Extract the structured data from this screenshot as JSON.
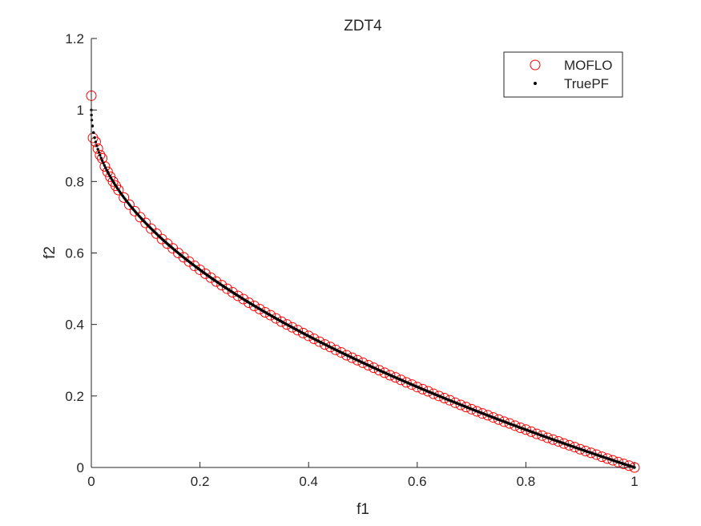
{
  "chart_data": {
    "type": "scatter",
    "title": "ZDT4",
    "xlabel": "f1",
    "ylabel": "f2",
    "xlim": [
      0,
      1
    ],
    "ylim": [
      0,
      1.2
    ],
    "xticks": [
      0,
      0.2,
      0.4,
      0.6,
      0.8,
      1
    ],
    "xtick_labels": [
      "0",
      "0.2",
      "0.4",
      "0.6",
      "0.8",
      "1"
    ],
    "yticks": [
      0,
      0.2,
      0.4,
      0.6,
      0.8,
      1,
      1.2
    ],
    "ytick_labels": [
      "0",
      "0.2",
      "0.4",
      "0.6",
      "0.8",
      "1",
      "1.2"
    ],
    "grid": false,
    "legend_position": "top-right",
    "series": [
      {
        "name": "MOFLO",
        "marker": "open-circle",
        "color": "#ff0000",
        "points": [
          [
            0.0,
            1.04
          ],
          [
            0.003,
            0.922
          ],
          [
            0.008,
            0.911
          ],
          [
            0.012,
            0.892
          ],
          [
            0.016,
            0.874
          ],
          [
            0.02,
            0.865
          ],
          [
            0.025,
            0.842
          ],
          [
            0.03,
            0.827
          ],
          [
            0.035,
            0.813
          ],
          [
            0.04,
            0.8
          ],
          [
            0.045,
            0.788
          ],
          [
            0.05,
            0.776
          ],
          [
            0.06,
            0.755
          ],
          [
            0.07,
            0.735
          ],
          [
            0.08,
            0.717
          ],
          [
            0.09,
            0.7
          ],
          [
            0.1,
            0.684
          ],
          [
            0.11,
            0.668
          ],
          [
            0.12,
            0.654
          ],
          [
            0.13,
            0.639
          ],
          [
            0.14,
            0.626
          ],
          [
            0.15,
            0.613
          ],
          [
            0.16,
            0.6
          ],
          [
            0.17,
            0.588
          ],
          [
            0.18,
            0.576
          ],
          [
            0.19,
            0.564
          ],
          [
            0.2,
            0.553
          ],
          [
            0.21,
            0.542
          ],
          [
            0.22,
            0.531
          ],
          [
            0.23,
            0.52
          ],
          [
            0.24,
            0.51
          ],
          [
            0.25,
            0.5
          ],
          [
            0.26,
            0.49
          ],
          [
            0.27,
            0.48
          ],
          [
            0.28,
            0.471
          ],
          [
            0.29,
            0.461
          ],
          [
            0.3,
            0.452
          ],
          [
            0.31,
            0.443
          ],
          [
            0.32,
            0.434
          ],
          [
            0.33,
            0.426
          ],
          [
            0.34,
            0.417
          ],
          [
            0.35,
            0.408
          ],
          [
            0.36,
            0.4
          ],
          [
            0.37,
            0.392
          ],
          [
            0.38,
            0.384
          ],
          [
            0.39,
            0.376
          ],
          [
            0.4,
            0.368
          ],
          [
            0.41,
            0.36
          ],
          [
            0.42,
            0.352
          ],
          [
            0.43,
            0.344
          ],
          [
            0.44,
            0.337
          ],
          [
            0.45,
            0.329
          ],
          [
            0.46,
            0.322
          ],
          [
            0.47,
            0.314
          ],
          [
            0.48,
            0.307
          ],
          [
            0.49,
            0.3
          ],
          [
            0.5,
            0.293
          ],
          [
            0.51,
            0.286
          ],
          [
            0.52,
            0.279
          ],
          [
            0.53,
            0.272
          ],
          [
            0.54,
            0.265
          ],
          [
            0.55,
            0.258
          ],
          [
            0.56,
            0.252
          ],
          [
            0.57,
            0.245
          ],
          [
            0.58,
            0.238
          ],
          [
            0.59,
            0.232
          ],
          [
            0.6,
            0.225
          ],
          [
            0.61,
            0.219
          ],
          [
            0.62,
            0.213
          ],
          [
            0.63,
            0.206
          ],
          [
            0.64,
            0.2
          ],
          [
            0.65,
            0.194
          ],
          [
            0.66,
            0.188
          ],
          [
            0.67,
            0.181
          ],
          [
            0.68,
            0.175
          ],
          [
            0.69,
            0.169
          ],
          [
            0.7,
            0.163
          ],
          [
            0.71,
            0.157
          ],
          [
            0.72,
            0.151
          ],
          [
            0.73,
            0.146
          ],
          [
            0.74,
            0.14
          ],
          [
            0.75,
            0.134
          ],
          [
            0.76,
            0.128
          ],
          [
            0.77,
            0.123
          ],
          [
            0.78,
            0.117
          ],
          [
            0.79,
            0.111
          ],
          [
            0.8,
            0.106
          ],
          [
            0.81,
            0.1
          ],
          [
            0.82,
            0.094
          ],
          [
            0.83,
            0.089
          ],
          [
            0.84,
            0.083
          ],
          [
            0.85,
            0.078
          ],
          [
            0.86,
            0.073
          ],
          [
            0.87,
            0.067
          ],
          [
            0.88,
            0.062
          ],
          [
            0.89,
            0.057
          ],
          [
            0.9,
            0.051
          ],
          [
            0.91,
            0.046
          ],
          [
            0.92,
            0.041
          ],
          [
            0.93,
            0.036
          ],
          [
            0.94,
            0.03
          ],
          [
            0.95,
            0.025
          ],
          [
            0.96,
            0.02
          ],
          [
            0.97,
            0.015
          ],
          [
            0.98,
            0.01
          ],
          [
            0.99,
            0.005
          ],
          [
            1.0,
            0.0
          ]
        ]
      },
      {
        "name": "TruePF",
        "marker": "dot",
        "color": "#000000",
        "curve": "f2 = 1 - sqrt(f1)",
        "x_min": 0,
        "x_max": 1,
        "n_points": 500
      }
    ]
  }
}
